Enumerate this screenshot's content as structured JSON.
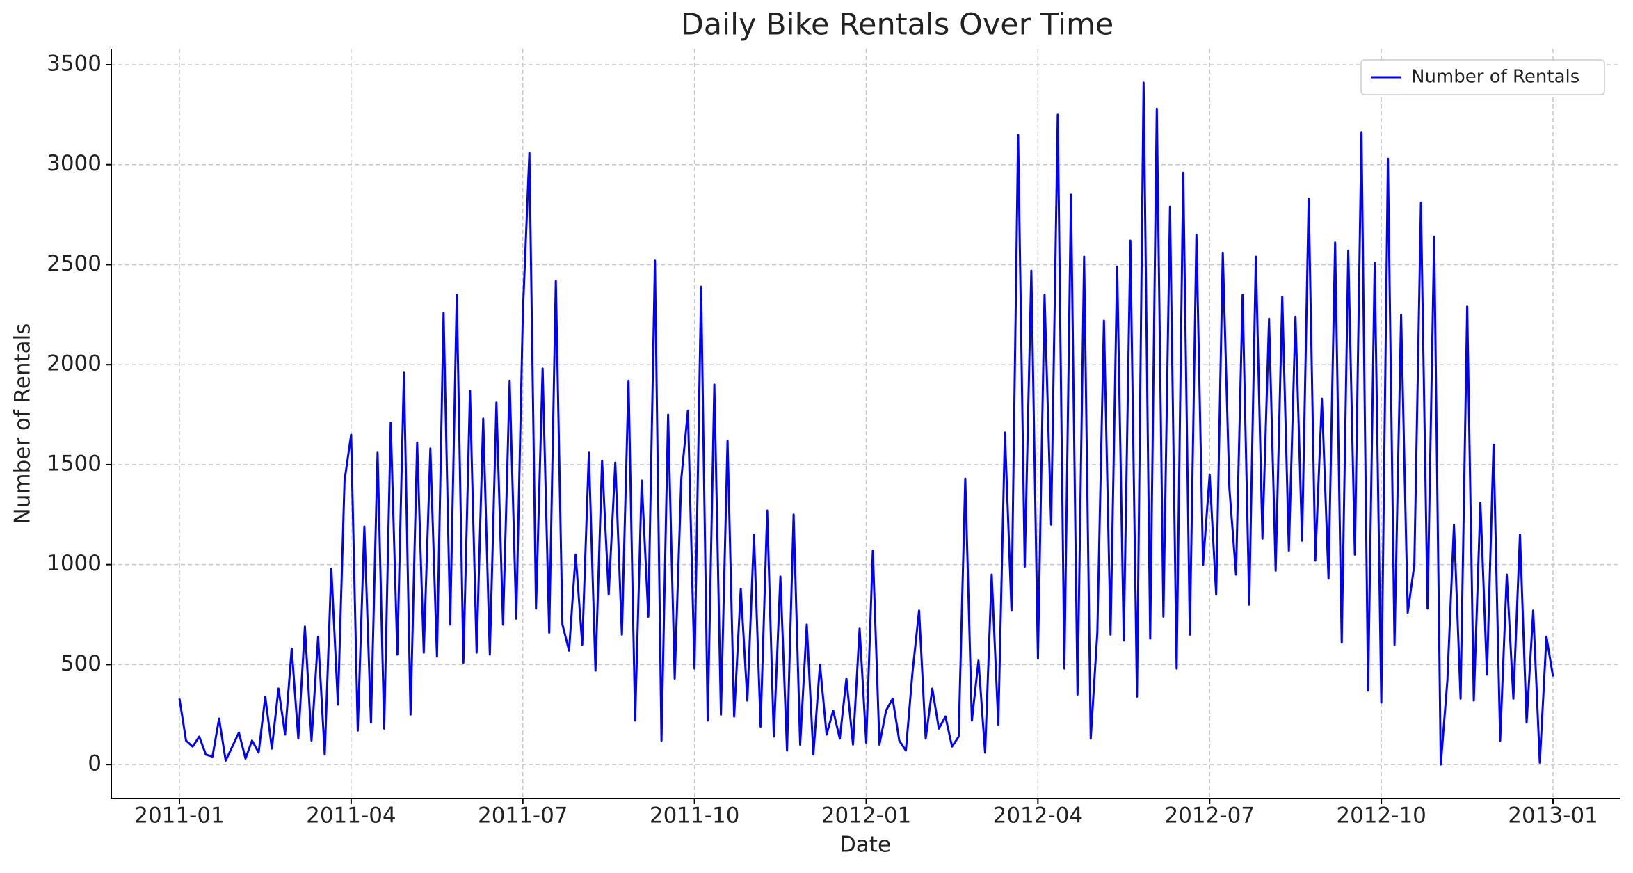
{
  "chart_data": {
    "type": "line",
    "title": "Daily Bike Rentals Over Time",
    "x_label": "Date",
    "y_label": "Number of Rentals",
    "categories": [
      "2011-01",
      null,
      null,
      null,
      null,
      null,
      null,
      null,
      null,
      null,
      null,
      null,
      null,
      null,
      null,
      null,
      null,
      null,
      null,
      null,
      null,
      null,
      null,
      null,
      null,
      null,
      "2011-04",
      null,
      null,
      null,
      null,
      null,
      null,
      null,
      null,
      null,
      null,
      null,
      null,
      null,
      null,
      null,
      null,
      null,
      null,
      null,
      null,
      null,
      null,
      null,
      null,
      null,
      "2011-07",
      null,
      null,
      null,
      null,
      null,
      null,
      null,
      null,
      null,
      null,
      null,
      null,
      null,
      null,
      null,
      null,
      null,
      null,
      null,
      null,
      null,
      null,
      null,
      null,
      null,
      "2011-10",
      null,
      null,
      null,
      null,
      null,
      null,
      null,
      null,
      null,
      null,
      null,
      null,
      null,
      null,
      null,
      null,
      null,
      null,
      null,
      null,
      null,
      null,
      null,
      null,
      null,
      "2012-01",
      null,
      null,
      null,
      null,
      null,
      null,
      null,
      null,
      null,
      null,
      null,
      null,
      null,
      null,
      null,
      null,
      null,
      null,
      null,
      null,
      null,
      null,
      null,
      null,
      null,
      "2012-04",
      null,
      null,
      null,
      null,
      null,
      null,
      null,
      null,
      null,
      null,
      null,
      null,
      null,
      null,
      null,
      null,
      null,
      null,
      null,
      null,
      null,
      null,
      null,
      null,
      null,
      "2012-07",
      null,
      null,
      null,
      null,
      null,
      null,
      null,
      null,
      null,
      null,
      null,
      null,
      null,
      null,
      null,
      null,
      null,
      null,
      null,
      null,
      null,
      null,
      null,
      null,
      null,
      "2012-10",
      null,
      null,
      null,
      null,
      null,
      null,
      null,
      null,
      null,
      null,
      null,
      null,
      null,
      null,
      null,
      null,
      null,
      null,
      null,
      null,
      null,
      null,
      null,
      null,
      null,
      "2013-01"
    ],
    "series": [
      {
        "name": "Number of Rentals",
        "color": "#0000ff",
        "values": [
          330,
          120,
          90,
          140,
          50,
          40,
          230,
          20,
          90,
          160,
          30,
          120,
          60,
          340,
          80,
          380,
          150,
          580,
          130,
          690,
          120,
          640,
          50,
          980,
          300,
          1420,
          1650,
          170,
          1190,
          210,
          1560,
          180,
          1710,
          550,
          1960,
          250,
          1610,
          560,
          1580,
          540,
          2260,
          700,
          2350,
          510,
          1870,
          560,
          1730,
          550,
          1810,
          700,
          1920,
          730,
          2260,
          3060,
          780,
          1980,
          660,
          2420,
          700,
          570,
          1050,
          600,
          1560,
          470,
          1520,
          850,
          1510,
          650,
          1920,
          220,
          1420,
          740,
          2520,
          120,
          1750,
          430,
          1430,
          1770,
          480,
          2390,
          220,
          1900,
          250,
          1620,
          240,
          880,
          320,
          1150,
          190,
          1270,
          140,
          940,
          70,
          1250,
          100,
          700,
          50,
          500,
          150,
          270,
          130,
          430,
          100,
          680,
          110,
          1070,
          100,
          270,
          330,
          120,
          70,
          460,
          770,
          130,
          380,
          180,
          240,
          90,
          140,
          1430,
          220,
          520,
          60,
          950,
          200,
          1660,
          770,
          3150,
          990,
          2470,
          530,
          2350,
          1200,
          3250,
          480,
          2850,
          350,
          2540,
          130,
          660,
          2220,
          650,
          2490,
          620,
          2620,
          340,
          3410,
          630,
          3280,
          740,
          2790,
          480,
          2960,
          650,
          2650,
          1000,
          1450,
          850,
          2560,
          1380,
          950,
          2350,
          800,
          2540,
          1130,
          2230,
          970,
          2340,
          1070,
          2240,
          1120,
          2830,
          1020,
          1830,
          930,
          2610,
          610,
          2570,
          1050,
          3160,
          370,
          2510,
          310,
          3030,
          600,
          2250,
          760,
          1000,
          2810,
          780,
          2640,
          0,
          420,
          1200,
          330,
          2290,
          320,
          1310,
          450,
          1600,
          120,
          950,
          330,
          1150,
          210,
          770,
          10,
          640,
          440
        ]
      }
    ],
    "ylim": [
      -170,
      3580
    ],
    "yticks": [
      0,
      500,
      1000,
      1500,
      2000,
      2500,
      3000,
      3500
    ],
    "grid": true,
    "legend": "upper right"
  }
}
